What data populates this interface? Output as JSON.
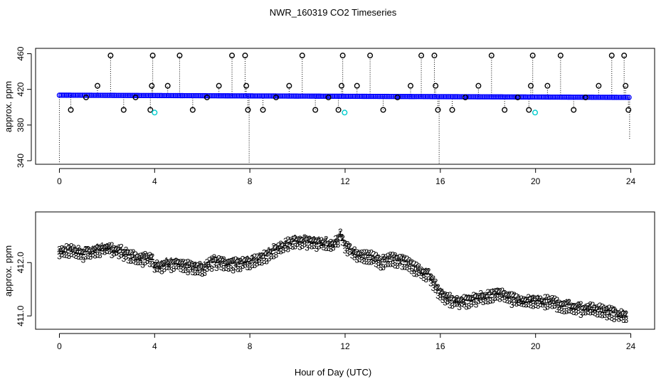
{
  "title": "NWR_160319  CO2 Timeseries",
  "xlabel": "Hour of Day (UTC)",
  "colors": {
    "background": "#ffffff",
    "frame": "#000000",
    "raw_marker": "#000000",
    "mean_marker": "#0000ff",
    "flag_marker": "#00cccc",
    "series1": "#ff0000",
    "series2": "#00bb00",
    "series3": "#0000cc"
  },
  "chart_data": [
    {
      "type": "scatter",
      "name": "raw-timeseries",
      "title": "NWR_160319  CO2 Timeseries",
      "xlabel": "",
      "ylabel": "approx. ppm",
      "xlim": [
        -1,
        25
      ],
      "ylim": [
        336,
        466
      ],
      "xticks": [
        0,
        4,
        8,
        12,
        16,
        20,
        24
      ],
      "xtick_labels": [
        "0",
        "4",
        "8",
        "12",
        "16",
        "20",
        "24"
      ],
      "yticks": [
        340,
        380,
        420,
        460
      ],
      "ytick_labels": [
        "340",
        "380",
        "420",
        "460"
      ],
      "grid": false,
      "baseline": "413.5 ppm at hour 0, easing to about 411 ppm at hour 24",
      "spike_points": [
        {
          "x": 0.48,
          "y": 397
        },
        {
          "x": 1.12,
          "y": 411
        },
        {
          "x": 1.6,
          "y": 424
        },
        {
          "x": 2.15,
          "y": 458
        },
        {
          "x": 2.7,
          "y": 397
        },
        {
          "x": 3.2,
          "y": 411
        },
        {
          "x": 3.82,
          "y": 397
        },
        {
          "x": 3.88,
          "y": 424
        },
        {
          "x": 3.92,
          "y": 458
        },
        {
          "x": 4.55,
          "y": 424
        },
        {
          "x": 5.05,
          "y": 458
        },
        {
          "x": 5.6,
          "y": 397
        },
        {
          "x": 6.2,
          "y": 411
        },
        {
          "x": 6.7,
          "y": 424
        },
        {
          "x": 7.25,
          "y": 458
        },
        {
          "x": 7.8,
          "y": 458
        },
        {
          "x": 7.85,
          "y": 424
        },
        {
          "x": 7.92,
          "y": 397
        },
        {
          "x": 8.55,
          "y": 397
        },
        {
          "x": 9.1,
          "y": 411
        },
        {
          "x": 9.65,
          "y": 424
        },
        {
          "x": 10.2,
          "y": 458
        },
        {
          "x": 10.75,
          "y": 397
        },
        {
          "x": 11.3,
          "y": 411
        },
        {
          "x": 11.72,
          "y": 397
        },
        {
          "x": 11.85,
          "y": 424
        },
        {
          "x": 11.9,
          "y": 458
        },
        {
          "x": 12.5,
          "y": 424
        },
        {
          "x": 13.05,
          "y": 458
        },
        {
          "x": 13.6,
          "y": 397
        },
        {
          "x": 14.2,
          "y": 411
        },
        {
          "x": 14.75,
          "y": 424
        },
        {
          "x": 15.2,
          "y": 458
        },
        {
          "x": 15.75,
          "y": 458
        },
        {
          "x": 15.8,
          "y": 424
        },
        {
          "x": 15.9,
          "y": 397
        },
        {
          "x": 16.5,
          "y": 397
        },
        {
          "x": 17.05,
          "y": 411
        },
        {
          "x": 17.6,
          "y": 424
        },
        {
          "x": 18.15,
          "y": 458
        },
        {
          "x": 18.7,
          "y": 397
        },
        {
          "x": 19.25,
          "y": 411
        },
        {
          "x": 19.72,
          "y": 397
        },
        {
          "x": 19.8,
          "y": 424
        },
        {
          "x": 19.88,
          "y": 458
        },
        {
          "x": 20.5,
          "y": 424
        },
        {
          "x": 21.05,
          "y": 458
        },
        {
          "x": 21.6,
          "y": 397
        },
        {
          "x": 22.1,
          "y": 411
        },
        {
          "x": 22.65,
          "y": 424
        },
        {
          "x": 23.2,
          "y": 458
        },
        {
          "x": 23.72,
          "y": 458
        },
        {
          "x": 23.78,
          "y": 424
        },
        {
          "x": 23.9,
          "y": 397
        }
      ],
      "flag_points": [
        {
          "x": 4.0,
          "y": 394
        },
        {
          "x": 11.98,
          "y": 394
        },
        {
          "x": 19.98,
          "y": 394
        }
      ],
      "drop_lines": [
        {
          "x": 0.0,
          "y_from": 413.5,
          "y_to": 336
        },
        {
          "x": 7.97,
          "y_from": 413,
          "y_to": 336
        },
        {
          "x": 15.95,
          "y_from": 412,
          "y_to": 336
        },
        {
          "x": 23.95,
          "y_from": 411,
          "y_to": 364
        }
      ]
    },
    {
      "type": "scatter",
      "name": "smoothed-timeseries",
      "title": "",
      "xlabel": "Hour of Day (UTC)",
      "ylabel": "approx. ppm",
      "xlim": [
        -1,
        25
      ],
      "ylim": [
        410.75,
        412.95
      ],
      "xticks": [
        0,
        4,
        8,
        12,
        16,
        20,
        24
      ],
      "xtick_labels": [
        "0",
        "4",
        "8",
        "12",
        "16",
        "20",
        "24"
      ],
      "yticks": [
        411.0,
        412.0
      ],
      "ytick_labels": [
        "411.0",
        "412.0"
      ],
      "grid": false,
      "marker_symbols": [
        "1",
        "2",
        "3"
      ],
      "series_offsets": {
        "1": 0.05,
        "2": 0.07,
        "3": -0.06
      },
      "base_curve": {
        "x": [
          0,
          0.5,
          1,
          1.5,
          2,
          2.5,
          3,
          3.5,
          3.9,
          4.0,
          4.5,
          5,
          5.5,
          6,
          6.5,
          7,
          7.5,
          8,
          8.5,
          9,
          9.5,
          10,
          10.5,
          11,
          11.5,
          11.8,
          12,
          12.5,
          13,
          13.5,
          14,
          14.5,
          15,
          15.5,
          16,
          16.5,
          17,
          17.5,
          18,
          18.5,
          19,
          19.5,
          20,
          20.5,
          21,
          21.5,
          22,
          22.5,
          23,
          23.5,
          23.9
        ],
        "values": [
          412.2,
          412.2,
          412.15,
          412.2,
          412.25,
          412.2,
          412.1,
          412.05,
          412.05,
          411.9,
          411.95,
          411.95,
          411.9,
          411.85,
          412.0,
          411.95,
          411.95,
          412.0,
          412.05,
          412.2,
          412.3,
          412.4,
          412.35,
          412.35,
          412.3,
          412.5,
          412.3,
          412.1,
          412.1,
          412.0,
          412.05,
          412.0,
          411.85,
          411.75,
          411.4,
          411.25,
          411.25,
          411.3,
          411.35,
          411.4,
          411.3,
          411.25,
          411.25,
          411.25,
          411.2,
          411.15,
          411.1,
          411.1,
          411.05,
          411.0,
          411.0
        ]
      }
    }
  ]
}
